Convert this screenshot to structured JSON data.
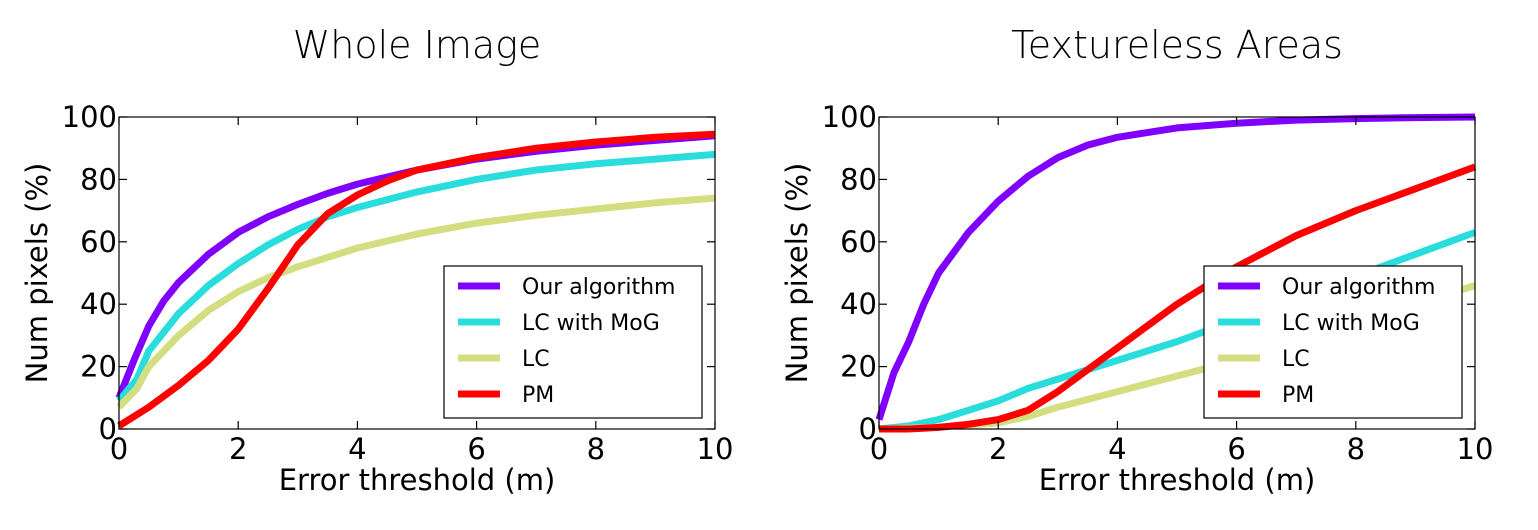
{
  "chart_data": [
    {
      "type": "line",
      "title": "Whole Image",
      "xlabel": "Error threshold (m)",
      "ylabel": "Num pixels (%)",
      "xlim": [
        0,
        10
      ],
      "ylim": [
        0,
        100
      ],
      "xticks": [
        "0",
        "2",
        "4",
        "6",
        "8",
        "10"
      ],
      "yticks": [
        "0",
        "20",
        "40",
        "60",
        "80",
        "100"
      ],
      "grid": false,
      "legend_position": "lower-right",
      "series": [
        {
          "name": "Our algorithm",
          "color": "#8000ff",
          "x": [
            0,
            0.25,
            0.5,
            0.75,
            1,
            1.5,
            2,
            2.5,
            3,
            3.5,
            4,
            5,
            6,
            7,
            8,
            9,
            10
          ],
          "y": [
            10,
            22,
            33,
            41,
            47,
            56,
            63,
            68,
            72,
            75.5,
            78.5,
            83,
            86.5,
            89,
            91,
            92.5,
            94
          ]
        },
        {
          "name": "LC with MoG",
          "color": "#2adddd",
          "x": [
            0,
            0.3,
            0.5,
            0.75,
            1,
            1.5,
            2,
            2.5,
            3,
            3.5,
            4,
            5,
            6,
            7,
            8,
            9,
            10
          ],
          "y": [
            9,
            16,
            25,
            31,
            37,
            46,
            53,
            59,
            64,
            68,
            71,
            76,
            80,
            83,
            85,
            86.5,
            88
          ]
        },
        {
          "name": "LC",
          "color": "#d4dd80",
          "x": [
            0,
            0.3,
            0.5,
            0.75,
            1,
            1.5,
            2,
            2.5,
            3,
            3.5,
            4,
            5,
            6,
            7,
            8,
            9,
            10
          ],
          "y": [
            7,
            13,
            20,
            25,
            30,
            38,
            44,
            48.5,
            52,
            55,
            58,
            62.5,
            66,
            68.5,
            70.5,
            72.5,
            74
          ]
        },
        {
          "name": "PM",
          "color": "#ff0000",
          "x": [
            0,
            0.5,
            1,
            1.5,
            2,
            2.5,
            3,
            3.5,
            4,
            4.5,
            5,
            5.5,
            6,
            7,
            8,
            9,
            10
          ],
          "y": [
            1,
            7,
            14,
            22,
            32,
            45,
            59,
            69,
            75,
            79.5,
            83,
            85,
            87,
            90,
            92,
            93.5,
            94.5
          ]
        }
      ]
    },
    {
      "type": "line",
      "title": "Textureless Areas",
      "xlabel": "Error threshold (m)",
      "ylabel": "Num pixels (%)",
      "xlim": [
        0,
        10
      ],
      "ylim": [
        0,
        100
      ],
      "xticks": [
        "0",
        "2",
        "4",
        "6",
        "8",
        "10"
      ],
      "yticks": [
        "0",
        "20",
        "40",
        "60",
        "80",
        "100"
      ],
      "grid": false,
      "legend_position": "lower-right",
      "series": [
        {
          "name": "Our algorithm",
          "color": "#8000ff",
          "x": [
            0,
            0.25,
            0.5,
            0.75,
            1,
            1.5,
            2,
            2.5,
            3,
            3.5,
            4,
            5,
            6,
            7,
            8,
            9,
            10
          ],
          "y": [
            3,
            18,
            28,
            40,
            50,
            63,
            73,
            81,
            87,
            91,
            93.5,
            96.5,
            98,
            99,
            99.5,
            99.8,
            100
          ]
        },
        {
          "name": "LC with MoG",
          "color": "#2adddd",
          "x": [
            0,
            0.5,
            1,
            1.5,
            2,
            2.5,
            3,
            3.5,
            4,
            5,
            6,
            7,
            8,
            9,
            10
          ],
          "y": [
            0,
            1,
            3,
            6,
            9,
            13,
            16,
            19,
            22,
            28,
            35,
            42,
            49,
            56,
            63
          ]
        },
        {
          "name": "LC",
          "color": "#d4dd80",
          "x": [
            0,
            1,
            2,
            2.5,
            3,
            4,
            5,
            6,
            7,
            8,
            9,
            10
          ],
          "y": [
            0,
            0.5,
            2,
            4,
            7,
            12,
            17,
            22,
            28,
            34,
            40,
            46
          ]
        },
        {
          "name": "PM",
          "color": "#ff0000",
          "x": [
            0,
            0.5,
            1,
            1.5,
            2,
            2.5,
            3,
            3.5,
            4,
            4.5,
            5,
            6,
            7,
            8,
            9,
            10
          ],
          "y": [
            0,
            0,
            0.5,
            1.5,
            3,
            6,
            12,
            19,
            26,
            33,
            40,
            52,
            62,
            70,
            77,
            84
          ]
        }
      ]
    }
  ]
}
